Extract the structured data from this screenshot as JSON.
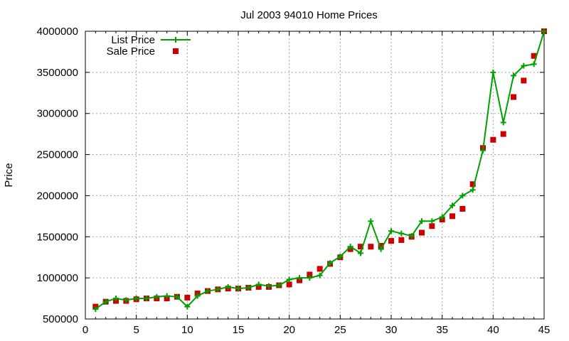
{
  "chart_data": {
    "type": "line",
    "title": "Jul 2003 94010 Home Prices",
    "xlabel": "",
    "ylabel": "Price",
    "xlim": [
      0,
      45
    ],
    "ylim": [
      500000,
      4000000
    ],
    "xticks": [
      0,
      5,
      10,
      15,
      20,
      25,
      30,
      35,
      40,
      45
    ],
    "yticks": [
      500000,
      1000000,
      1500000,
      2000000,
      2500000,
      3000000,
      3500000,
      4000000
    ],
    "grid": true,
    "legend_position": "top-left",
    "series": [
      {
        "name": "List Price",
        "style": "line-plus",
        "color": "#00a000",
        "x": [
          1,
          2,
          3,
          4,
          5,
          6,
          7,
          8,
          9,
          10,
          11,
          12,
          13,
          14,
          15,
          16,
          17,
          18,
          19,
          20,
          21,
          22,
          23,
          24,
          25,
          26,
          27,
          28,
          29,
          30,
          31,
          32,
          33,
          34,
          35,
          36,
          37,
          38,
          39,
          40,
          41,
          42,
          43,
          44,
          45
        ],
        "y": [
          620000,
          710000,
          750000,
          730000,
          750000,
          750000,
          770000,
          780000,
          770000,
          650000,
          780000,
          840000,
          860000,
          890000,
          870000,
          880000,
          920000,
          900000,
          910000,
          980000,
          1000000,
          1000000,
          1030000,
          1180000,
          1260000,
          1380000,
          1300000,
          1690000,
          1350000,
          1570000,
          1540000,
          1510000,
          1690000,
          1690000,
          1740000,
          1880000,
          2000000,
          2070000,
          2550000,
          3500000,
          2890000,
          3460000,
          3580000,
          3600000,
          4000000
        ]
      },
      {
        "name": "Sale Price",
        "style": "square-points",
        "color": "#cc0000",
        "x": [
          1,
          2,
          3,
          4,
          5,
          6,
          7,
          8,
          9,
          10,
          11,
          12,
          13,
          14,
          15,
          16,
          17,
          18,
          19,
          20,
          21,
          22,
          23,
          24,
          25,
          26,
          27,
          28,
          29,
          30,
          31,
          32,
          33,
          34,
          35,
          36,
          37,
          38,
          39,
          40,
          41,
          42,
          43,
          44,
          45
        ],
        "y": [
          650000,
          710000,
          720000,
          720000,
          740000,
          750000,
          750000,
          750000,
          770000,
          760000,
          810000,
          840000,
          860000,
          870000,
          870000,
          880000,
          890000,
          890000,
          910000,
          920000,
          970000,
          1040000,
          1110000,
          1170000,
          1250000,
          1350000,
          1380000,
          1380000,
          1390000,
          1450000,
          1460000,
          1500000,
          1550000,
          1630000,
          1710000,
          1750000,
          1840000,
          2140000,
          2580000,
          2680000,
          2750000,
          3200000,
          3400000,
          3700000,
          4000000
        ]
      }
    ]
  }
}
